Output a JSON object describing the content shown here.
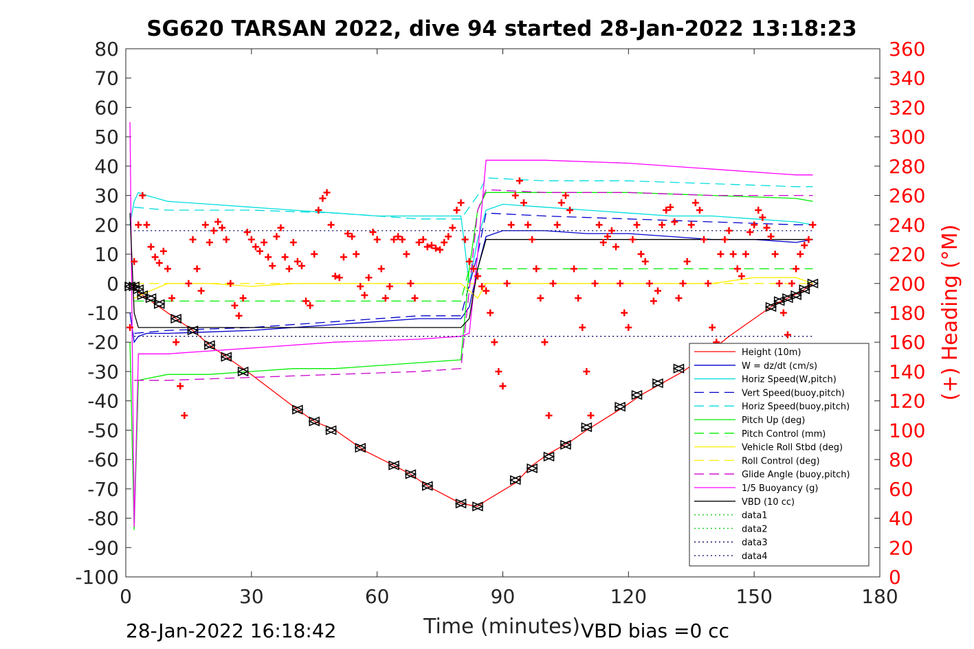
{
  "chart_data": {
    "type": "line",
    "title": "SG620 TARSAN 2022, dive 94 started 28-Jan-2022 13:18:23",
    "xlabel": "Time (minutes)",
    "ylabel_right": "(+) Heading (°M)",
    "footer_left": "28-Jan-2022 16:18:42",
    "footer_right": "VBD bias =0 cc",
    "xlim": [
      0,
      180
    ],
    "ylim_left": [
      -100,
      80
    ],
    "ylim_right": [
      0,
      360
    ],
    "xticks": [
      "0",
      "30",
      "60",
      "90",
      "120",
      "150",
      "180"
    ],
    "yticks_left": [
      "80",
      "70",
      "60",
      "50",
      "40",
      "30",
      "20",
      "10",
      "0",
      "-10",
      "-20",
      "-30",
      "-40",
      "-50",
      "-60",
      "-70",
      "-80",
      "-90",
      "-100"
    ],
    "yticks_right": [
      "360",
      "340",
      "320",
      "300",
      "280",
      "260",
      "240",
      "220",
      "200",
      "180",
      "160",
      "140",
      "120",
      "100",
      "80",
      "60",
      "40",
      "20",
      "0"
    ],
    "grid": false,
    "legend_placement": "bottom-right",
    "series": [
      {
        "name": "Height (10m)",
        "color": "#ff0000",
        "style": "solid",
        "x": [
          1,
          3,
          5,
          8,
          12,
          16,
          20,
          25,
          29,
          41,
          45,
          50,
          57,
          64,
          68,
          72,
          80,
          84,
          86,
          93,
          97,
          101,
          106,
          110,
          119,
          123,
          128,
          133,
          138,
          144,
          150,
          155,
          158,
          161,
          164
        ],
        "y": [
          0,
          -3,
          -5,
          -8,
          -12,
          -16,
          -21,
          -26,
          -30,
          -43,
          -47,
          -50,
          -57,
          -62,
          -65,
          -69,
          -75,
          -76,
          -74,
          -68,
          -62,
          -58,
          -54,
          -50,
          -42,
          -38,
          -34,
          -30,
          -25,
          -18,
          -12,
          -7,
          -5,
          -3,
          0
        ]
      },
      {
        "name": "W = dz/dt (cm/s)",
        "color": "#0000cc",
        "style": "solid",
        "x": [
          1,
          2,
          3,
          5,
          10,
          20,
          30,
          40,
          50,
          60,
          70,
          80,
          82,
          84,
          86,
          90,
          100,
          110,
          120,
          130,
          140,
          150,
          160,
          164
        ],
        "y": [
          -10,
          -20,
          -18,
          -17,
          -17,
          -16.5,
          -16,
          -15,
          -14,
          -13,
          -12,
          -12,
          -8,
          5,
          16,
          18,
          18,
          17,
          17,
          16,
          15,
          15,
          14,
          15
        ]
      },
      {
        "name": "Horiz Speed(W,pitch)",
        "color": "#00dddd",
        "style": "solid",
        "x": [
          1,
          2,
          3,
          5,
          10,
          20,
          30,
          40,
          50,
          60,
          70,
          80,
          82,
          84,
          86,
          90,
          100,
          110,
          120,
          130,
          140,
          150,
          160,
          164
        ],
        "y": [
          20,
          28,
          31,
          30,
          28,
          27,
          26,
          25,
          24,
          23,
          23,
          23,
          0,
          15,
          25,
          27,
          26,
          25,
          24,
          23,
          23,
          22,
          21,
          20
        ]
      },
      {
        "name": "Vert Speed(buoy,pitch)",
        "color": "#0000cc",
        "style": "dashed",
        "x": [
          2,
          10,
          30,
          50,
          70,
          80,
          84,
          86,
          100,
          120,
          140,
          160,
          164
        ],
        "y": [
          -17,
          -16,
          -15,
          -13,
          -11,
          -11,
          10,
          24,
          23,
          22,
          21,
          20,
          20
        ]
      },
      {
        "name": "Horiz Speed(buoy,pitch)",
        "color": "#00dddd",
        "style": "dashed",
        "x": [
          2,
          10,
          30,
          50,
          70,
          80,
          84,
          86,
          100,
          120,
          140,
          160,
          164
        ],
        "y": [
          26,
          25,
          25,
          24,
          22,
          22,
          30,
          36,
          35,
          35,
          34,
          33,
          33
        ]
      },
      {
        "name": "Pitch Up (deg)",
        "color": "#00ee00",
        "style": "solid",
        "x": [
          1,
          2,
          3,
          10,
          20,
          30,
          40,
          50,
          60,
          70,
          80,
          82,
          84,
          86,
          100,
          120,
          140,
          160,
          164
        ],
        "y": [
          -20,
          -84,
          -33,
          -31,
          -31,
          -30,
          -29,
          -29,
          -28,
          -27,
          -26,
          5,
          25,
          31,
          31,
          31,
          30,
          29,
          28
        ]
      },
      {
        "name": "Pitch Control (mm)",
        "color": "#00ee00",
        "style": "dashed",
        "x": [
          2,
          80,
          82,
          164
        ],
        "y": [
          -6,
          -6,
          5,
          5
        ]
      },
      {
        "name": "Vehicle Roll Stbd (deg)",
        "color": "#ffee00",
        "style": "solid",
        "x": [
          2,
          5,
          10,
          20,
          30,
          40,
          50,
          60,
          70,
          80,
          84,
          86,
          90,
          100,
          110,
          120,
          130,
          140,
          150,
          160,
          164
        ],
        "y": [
          -5,
          -3,
          0,
          0,
          -1,
          0,
          0,
          0,
          0,
          0,
          -5,
          0,
          0,
          0,
          0,
          0,
          0,
          0,
          2,
          2,
          0
        ]
      },
      {
        "name": "Roll Control (deg)",
        "color": "#ffee00",
        "style": "dashed",
        "x": [
          2,
          164
        ],
        "y": [
          0,
          0
        ]
      },
      {
        "name": "Glide Angle (buoy,pitch)",
        "color": "#cc00cc",
        "style": "dashed",
        "x": [
          2,
          10,
          30,
          50,
          70,
          80,
          84,
          86,
          100,
          120,
          140,
          160,
          164
        ],
        "y": [
          -33,
          -33,
          -32,
          -31,
          -30,
          -29,
          25,
          32,
          31,
          31,
          30,
          30,
          30
        ]
      },
      {
        "name": "1/5 Buoyancy (g)",
        "color": "#ff00ff",
        "style": "solid",
        "x": [
          1,
          2,
          3,
          10,
          20,
          30,
          50,
          70,
          80,
          82,
          84,
          86,
          100,
          120,
          140,
          160,
          164
        ],
        "y": [
          55,
          -83,
          -24,
          -24,
          -23,
          -22,
          -20,
          -19,
          -18,
          -17,
          10,
          42,
          42,
          41,
          39,
          37,
          37
        ]
      },
      {
        "name": "VBD (10 cc)",
        "color": "#000000",
        "style": "solid",
        "x": [
          1,
          2,
          3,
          80,
          82,
          84,
          86,
          164
        ],
        "y": [
          24,
          -10,
          -15,
          -15,
          -12,
          5,
          15,
          15
        ]
      },
      {
        "name": "data1",
        "color": "#00cc00",
        "style": "dotted",
        "x": [],
        "y": []
      },
      {
        "name": "data2",
        "color": "#00cc00",
        "style": "dotted",
        "x": [],
        "y": []
      },
      {
        "name": "data3",
        "color": "#000066",
        "style": "dotted",
        "x": [
          2,
          164
        ],
        "y": [
          18,
          18
        ]
      },
      {
        "name": "data4",
        "color": "#000066",
        "style": "dotted",
        "x": [
          2,
          164
        ],
        "y": [
          -18,
          -18
        ]
      }
    ],
    "heading": {
      "name": "(+) Heading (°M)",
      "color": "#ff0000",
      "marker": "+",
      "x": [
        1,
        2,
        3,
        4,
        5,
        6,
        7,
        8,
        9,
        10,
        11,
        12,
        13,
        14,
        15,
        16,
        17,
        18,
        19,
        20,
        21,
        22,
        23,
        24,
        25,
        26,
        27,
        28,
        29,
        30,
        31,
        32,
        33,
        34,
        35,
        36,
        37,
        38,
        39,
        40,
        41,
        42,
        43,
        44,
        45,
        46,
        47,
        48,
        49,
        50,
        51,
        52,
        53,
        54,
        55,
        56,
        57,
        58,
        59,
        60,
        61,
        62,
        63,
        64,
        65,
        66,
        67,
        68,
        69,
        70,
        71,
        72,
        73,
        74,
        75,
        76,
        77,
        78,
        79,
        80,
        81,
        82,
        83,
        84,
        85,
        86,
        87,
        88,
        89,
        90,
        91,
        92,
        93,
        94,
        95,
        96,
        97,
        98,
        99,
        100,
        101,
        102,
        103,
        104,
        105,
        106,
        107,
        108,
        109,
        110,
        111,
        112,
        113,
        114,
        115,
        116,
        117,
        118,
        119,
        120,
        121,
        122,
        123,
        124,
        125,
        126,
        127,
        128,
        129,
        130,
        131,
        132,
        133,
        134,
        135,
        136,
        137,
        138,
        139,
        140,
        141,
        142,
        143,
        144,
        145,
        146,
        147,
        148,
        149,
        150,
        151,
        152,
        153,
        154,
        155,
        156,
        157,
        158,
        159,
        160,
        161,
        162,
        163,
        164
      ],
      "y": [
        170,
        215,
        240,
        260,
        240,
        225,
        218,
        214,
        222,
        210,
        190,
        160,
        130,
        110,
        200,
        230,
        210,
        195,
        240,
        228,
        236,
        242,
        238,
        230,
        200,
        185,
        178,
        190,
        235,
        230,
        225,
        222,
        228,
        218,
        212,
        232,
        238,
        218,
        210,
        228,
        215,
        212,
        188,
        185,
        220,
        250,
        258,
        262,
        240,
        205,
        204,
        218,
        234,
        232,
        220,
        198,
        192,
        204,
        235,
        230,
        210,
        190,
        198,
        230,
        232,
        230,
        220,
        200,
        190,
        228,
        230,
        225,
        226,
        224,
        223,
        228,
        232,
        238,
        250,
        255,
        230,
        215,
        210,
        205,
        198,
        195,
        180,
        160,
        140,
        130,
        200,
        240,
        260,
        270,
        255,
        240,
        230,
        210,
        190,
        160,
        110,
        200,
        240,
        255,
        260,
        250,
        210,
        190,
        170,
        140,
        110,
        200,
        240,
        228,
        232,
        236,
        225,
        200,
        180,
        170,
        230,
        240,
        220,
        215,
        200,
        188,
        195,
        240,
        250,
        252,
        242,
        190,
        200,
        215,
        240,
        255,
        250,
        230,
        200,
        170,
        160,
        220,
        230,
        236,
        220,
        210,
        205,
        220,
        235,
        240,
        250,
        245,
        238,
        232,
        220,
        200,
        180,
        165,
        200,
        210,
        220,
        226,
        230,
        240
      ]
    },
    "triangles": {
      "name": "triangle markers",
      "color": "#000000",
      "x": [
        1,
        2,
        3,
        4,
        6,
        8,
        12,
        16,
        20,
        24,
        28,
        41,
        45,
        49,
        56,
        64,
        68,
        72,
        80,
        84,
        93,
        97,
        101,
        105,
        110,
        118,
        122,
        127,
        132,
        136,
        154,
        156,
        158,
        160,
        162,
        164
      ],
      "y": [
        -1,
        -1,
        -2,
        -4,
        -5,
        -7,
        -12,
        -16,
        -21,
        -25,
        -30,
        -43,
        -47,
        -50,
        -56,
        -62,
        -65,
        -69,
        -75,
        -76,
        -67,
        -63,
        -59,
        -55,
        -49,
        -42,
        -38,
        -34,
        -29,
        -26,
        -8,
        -6,
        -5,
        -4,
        -2,
        0
      ]
    }
  },
  "legend": [
    {
      "label": "Height (10m)",
      "color": "#ff0000",
      "style": "solid"
    },
    {
      "label": "W = dz/dt (cm/s)",
      "color": "#0000cc",
      "style": "solid"
    },
    {
      "label": "Horiz Speed(W,pitch)",
      "color": "#00dddd",
      "style": "solid"
    },
    {
      "label": "Vert Speed(buoy,pitch)",
      "color": "#0000cc",
      "style": "dashed"
    },
    {
      "label": "Horiz Speed(buoy,pitch)",
      "color": "#00dddd",
      "style": "dashed"
    },
    {
      "label": "Pitch Up (deg)",
      "color": "#00ee00",
      "style": "solid"
    },
    {
      "label": "Pitch Control (mm)",
      "color": "#00ee00",
      "style": "dashed"
    },
    {
      "label": "Vehicle Roll Stbd (deg)",
      "color": "#ffee00",
      "style": "solid"
    },
    {
      "label": "Roll Control (deg)",
      "color": "#ffee00",
      "style": "dashed"
    },
    {
      "label": "Glide Angle (buoy,pitch)",
      "color": "#cc00cc",
      "style": "dashed"
    },
    {
      "label": "1/5 Buoyancy (g)",
      "color": "#ff00ff",
      "style": "solid"
    },
    {
      "label": "VBD (10 cc)",
      "color": "#000000",
      "style": "solid"
    },
    {
      "label": "data1",
      "color": "#00cc00",
      "style": "dotted"
    },
    {
      "label": "data2",
      "color": "#00cc00",
      "style": "dotted"
    },
    {
      "label": "data3",
      "color": "#000066",
      "style": "dotted"
    },
    {
      "label": "data4",
      "color": "#000066",
      "style": "dotted"
    }
  ]
}
